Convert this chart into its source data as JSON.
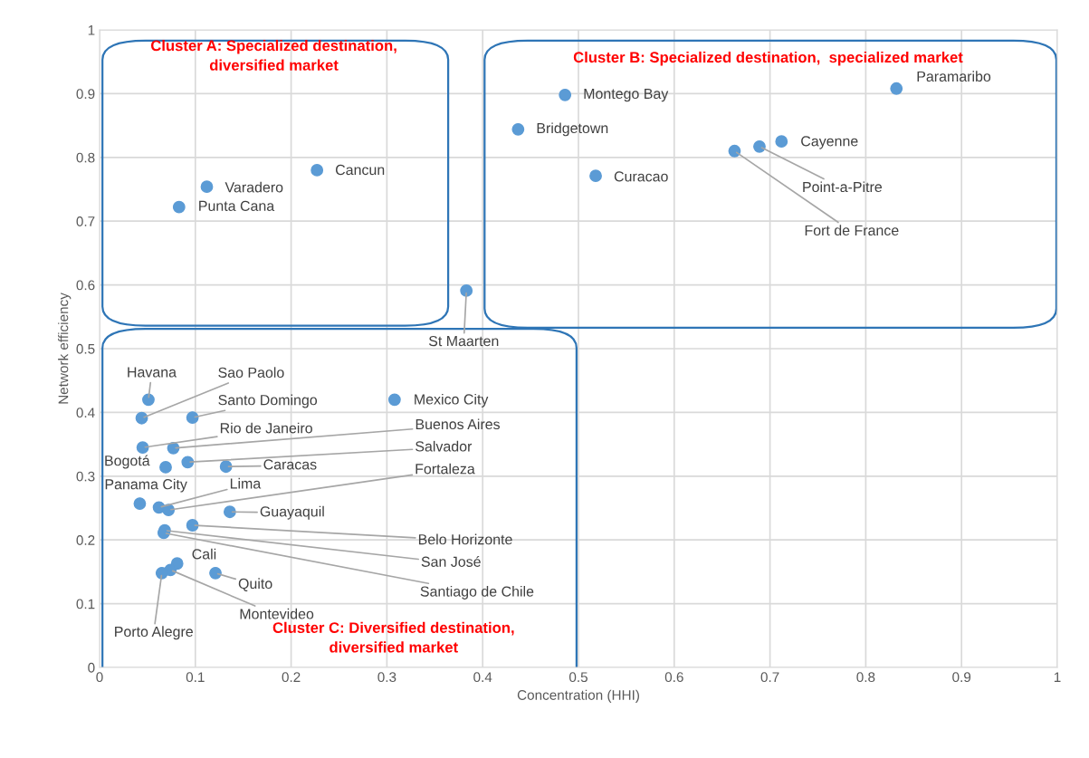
{
  "chart_data": {
    "type": "scatter",
    "xlabel": "Concentration (HHI)",
    "ylabel": "Network efficiency",
    "xlim": [
      0,
      1
    ],
    "ylim": [
      0,
      1
    ],
    "xticks": [
      0,
      0.1,
      0.2,
      0.3,
      0.4,
      0.5,
      0.6,
      0.7,
      0.8,
      0.9,
      1
    ],
    "yticks": [
      0,
      0.1,
      0.2,
      0.3,
      0.4,
      0.5,
      0.6,
      0.7,
      0.8,
      0.9,
      1
    ],
    "grid": true,
    "marker": "circle",
    "series": [
      {
        "color": "#5b9bd5",
        "x": [
          0.051,
          0.044,
          0.097,
          0.045,
          0.077,
          0.069,
          0.092,
          0.132,
          0.042,
          0.062,
          0.072,
          0.136,
          0.097,
          0.068,
          0.067,
          0.081,
          0.121,
          0.074,
          0.065,
          0.308,
          0.227,
          0.112,
          0.083,
          0.383,
          0.486,
          0.437,
          0.518,
          0.832,
          0.712,
          0.689,
          0.663
        ],
        "values": [
          0.42,
          0.391,
          0.392,
          0.345,
          0.344,
          0.314,
          0.322,
          0.315,
          0.257,
          0.251,
          0.247,
          0.244,
          0.223,
          0.215,
          0.211,
          0.163,
          0.148,
          0.153,
          0.148,
          0.42,
          0.78,
          0.754,
          0.722,
          0.591,
          0.898,
          0.844,
          0.771,
          0.908,
          0.825,
          0.817,
          0.81
        ]
      }
    ],
    "annotations": [
      {
        "text": "Havana",
        "x": 0.051,
        "y": 0.42
      },
      {
        "text": "Sao Paolo",
        "x": 0.044,
        "y": 0.391
      },
      {
        "text": "Santo Domingo",
        "x": 0.097,
        "y": 0.392
      },
      {
        "text": "Rio de Janeiro",
        "x": 0.045,
        "y": 0.345
      },
      {
        "text": "Buenos Aires",
        "x": 0.077,
        "y": 0.344
      },
      {
        "text": "Bogotá",
        "x": 0.069,
        "y": 0.314
      },
      {
        "text": "Salvador",
        "x": 0.092,
        "y": 0.322
      },
      {
        "text": "Caracas",
        "x": 0.132,
        "y": 0.315
      },
      {
        "text": "Panama City",
        "x": 0.042,
        "y": 0.257
      },
      {
        "text": "Lima",
        "x": 0.062,
        "y": 0.251
      },
      {
        "text": "Fortaleza",
        "x": 0.072,
        "y": 0.247
      },
      {
        "text": "Guayaquil",
        "x": 0.136,
        "y": 0.244
      },
      {
        "text": "Belo Horizonte",
        "x": 0.097,
        "y": 0.223
      },
      {
        "text": "San José",
        "x": 0.068,
        "y": 0.215
      },
      {
        "text": "Santiago de Chile",
        "x": 0.067,
        "y": 0.211
      },
      {
        "text": "Cali",
        "x": 0.081,
        "y": 0.163
      },
      {
        "text": "Quito",
        "x": 0.121,
        "y": 0.148
      },
      {
        "text": "Montevideo",
        "x": 0.074,
        "y": 0.153
      },
      {
        "text": "Porto Alegre",
        "x": 0.065,
        "y": 0.148
      },
      {
        "text": "Mexico City",
        "x": 0.308,
        "y": 0.42
      },
      {
        "text": "Cancun",
        "x": 0.227,
        "y": 0.78
      },
      {
        "text": "Varadero",
        "x": 0.112,
        "y": 0.754
      },
      {
        "text": "Punta Cana",
        "x": 0.083,
        "y": 0.722
      },
      {
        "text": "St Maarten",
        "x": 0.383,
        "y": 0.591
      },
      {
        "text": "Montego Bay",
        "x": 0.486,
        "y": 0.898
      },
      {
        "text": "Bridgetown",
        "x": 0.437,
        "y": 0.844
      },
      {
        "text": "Curacao",
        "x": 0.518,
        "y": 0.771
      },
      {
        "text": "Paramaribo",
        "x": 0.832,
        "y": 0.908
      },
      {
        "text": "Cayenne",
        "x": 0.712,
        "y": 0.825
      },
      {
        "text": "Point-a-Pitre",
        "x": 0.689,
        "y": 0.817
      },
      {
        "text": "Fort de France",
        "x": 0.663,
        "y": 0.81
      },
      "Cluster A: Specialized destination,\ndiversified market",
      "Cluster B: Specialized destination,  specialized market",
      "Cluster C: Diversified destination,\ndiversified market"
    ]
  }
}
